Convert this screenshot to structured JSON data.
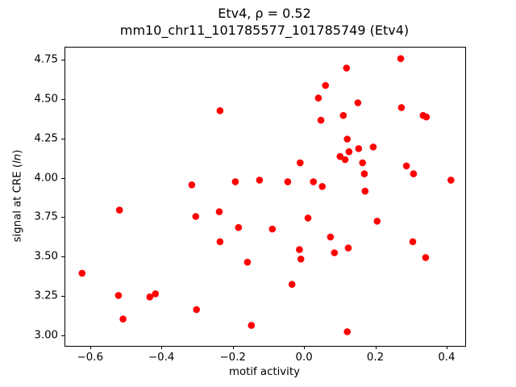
{
  "chart": {
    "title_line1": "Etv4, ρ = 0.52",
    "title_line2": "mm10_chr11_101785577_101785749 (Etv4)",
    "xlabel": "motif activity",
    "ylabel_prefix": "signal at CRE (",
    "ylabel_italic": "ln",
    "ylabel_suffix": ")"
  },
  "chart_data": {
    "type": "scatter",
    "title": "Etv4, ρ = 0.52\nmm10_chr11_101785577_101785749 (Etv4)",
    "xlabel": "motif activity",
    "ylabel": "signal at CRE (ln)",
    "marker_color": "#ff0000",
    "grid": false,
    "legend": "none",
    "xlim": [
      -0.672,
      0.45
    ],
    "ylim": [
      2.94,
      4.83
    ],
    "xticks": [
      -0.6,
      -0.4,
      -0.2,
      0.0,
      0.2,
      0.4
    ],
    "xtick_labels": [
      "−0.6",
      "−0.4",
      "−0.2",
      "0.0",
      "0.2",
      "0.4"
    ],
    "yticks": [
      3.0,
      3.25,
      3.5,
      3.75,
      4.0,
      4.25,
      4.5,
      4.75
    ],
    "ytick_labels": [
      "3.00",
      "3.25",
      "3.50",
      "3.75",
      "4.00",
      "4.25",
      "4.50",
      "4.75"
    ],
    "points": [
      [
        -0.625,
        3.4
      ],
      [
        -0.52,
        3.8
      ],
      [
        -0.523,
        3.26
      ],
      [
        -0.51,
        3.11
      ],
      [
        -0.435,
        3.25
      ],
      [
        -0.419,
        3.27
      ],
      [
        -0.317,
        3.96
      ],
      [
        -0.306,
        3.76
      ],
      [
        -0.304,
        3.17
      ],
      [
        -0.238,
        4.43
      ],
      [
        -0.24,
        3.79
      ],
      [
        -0.238,
        3.6
      ],
      [
        -0.195,
        3.98
      ],
      [
        -0.186,
        3.69
      ],
      [
        -0.161,
        3.47
      ],
      [
        -0.15,
        3.07
      ],
      [
        -0.127,
        3.99
      ],
      [
        -0.091,
        3.68
      ],
      [
        -0.048,
        3.98
      ],
      [
        -0.036,
        3.33
      ],
      [
        -0.013,
        4.1
      ],
      [
        -0.015,
        3.55
      ],
      [
        -0.011,
        3.49
      ],
      [
        0.009,
        3.75
      ],
      [
        0.024,
        3.98
      ],
      [
        0.038,
        4.51
      ],
      [
        0.045,
        4.37
      ],
      [
        0.049,
        3.95
      ],
      [
        0.058,
        4.59
      ],
      [
        0.072,
        3.63
      ],
      [
        0.083,
        3.53
      ],
      [
        0.099,
        4.14
      ],
      [
        0.113,
        4.12
      ],
      [
        0.117,
        4.7
      ],
      [
        0.108,
        4.4
      ],
      [
        0.119,
        4.25
      ],
      [
        0.124,
        4.17
      ],
      [
        0.122,
        3.56
      ],
      [
        0.119,
        3.03
      ],
      [
        0.149,
        4.48
      ],
      [
        0.151,
        4.19
      ],
      [
        0.162,
        4.1
      ],
      [
        0.167,
        4.03
      ],
      [
        0.169,
        3.92
      ],
      [
        0.192,
        4.2
      ],
      [
        0.203,
        3.73
      ],
      [
        0.269,
        4.76
      ],
      [
        0.271,
        4.45
      ],
      [
        0.285,
        4.08
      ],
      [
        0.305,
        4.03
      ],
      [
        0.303,
        3.6
      ],
      [
        0.332,
        4.4
      ],
      [
        0.341,
        4.39
      ],
      [
        0.339,
        3.5
      ],
      [
        0.41,
        3.99
      ]
    ]
  }
}
